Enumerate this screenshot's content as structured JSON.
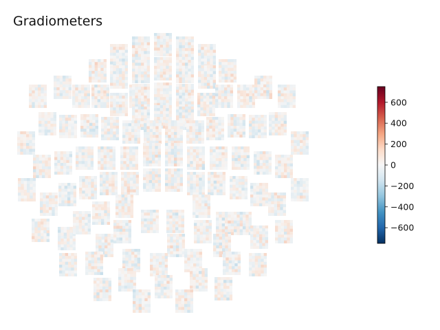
{
  "chart_data": {
    "type": "heatmap",
    "title": "Gradiometers",
    "xlabel": "",
    "ylabel": "",
    "grid": false,
    "colormap": {
      "name": "RdBu_r",
      "stops": [
        "#053061",
        "#2166ac",
        "#4393c3",
        "#92c5de",
        "#d1e5f0",
        "#f7f7f7",
        "#fddbc7",
        "#f4a582",
        "#d6604d",
        "#b2182b",
        "#67001f"
      ]
    },
    "colorbar": {
      "range": [
        -750,
        750
      ],
      "ticks": [
        -600,
        -400,
        -200,
        0,
        200,
        400,
        600
      ],
      "tick_labels": [
        "−600",
        "−400",
        "−200",
        "0",
        "200",
        "400",
        "600"
      ],
      "placement": "right"
    },
    "sensors": {
      "count": 102,
      "note": "each sensor panel is a small heatmap of near-zero values (mostly within ±200)"
    }
  }
}
